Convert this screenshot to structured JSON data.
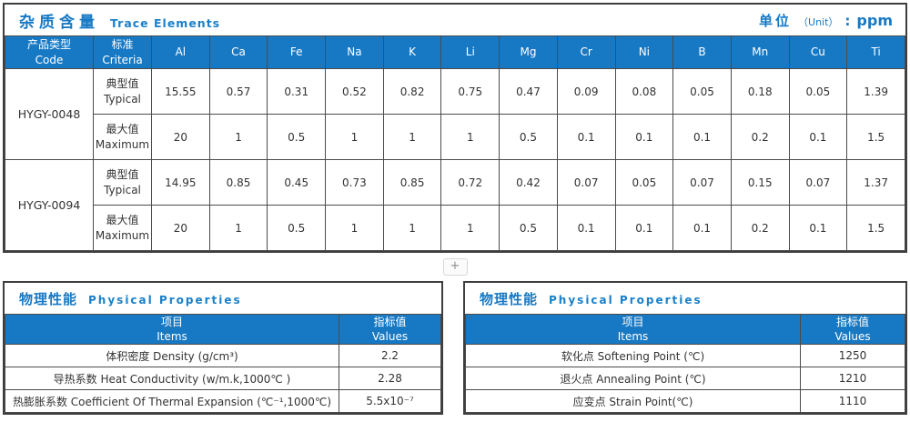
{
  "colors": {
    "accent_blue": "#1779c4",
    "header_bg": "#1779c4",
    "grid_line": "#4b4b4b",
    "text": "#333333"
  },
  "trace": {
    "title_zh": "杂质含量",
    "title_en": "Trace Elements",
    "unit_zh": "单位",
    "unit_paren": "（Unit）",
    "unit_colon": ":",
    "unit_value": "ppm",
    "col_code_zh": "产品类型",
    "col_code_en": "Code",
    "col_criteria_zh": "标准",
    "col_criteria_en": "Criteria",
    "elements": [
      "Al",
      "Ca",
      "Fe",
      "Na",
      "K",
      "Li",
      "Mg",
      "Cr",
      "Ni",
      "B",
      "Mn",
      "Cu",
      "Ti"
    ],
    "products": [
      {
        "code": "HYGY-0048",
        "rows": [
          {
            "label_zh": "典型值",
            "label_en": "Typical",
            "values": [
              "15.55",
              "0.57",
              "0.31",
              "0.52",
              "0.82",
              "0.75",
              "0.47",
              "0.09",
              "0.08",
              "0.05",
              "0.18",
              "0.05",
              "1.39"
            ]
          },
          {
            "label_zh": "最大值",
            "label_en": "Maximum",
            "values": [
              "20",
              "1",
              "0.5",
              "1",
              "1",
              "1",
              "0.5",
              "0.1",
              "0.1",
              "0.1",
              "0.2",
              "0.1",
              "1.5"
            ]
          }
        ]
      },
      {
        "code": "HYGY-0094",
        "rows": [
          {
            "label_zh": "典型值",
            "label_en": "Typical",
            "values": [
              "14.95",
              "0.85",
              "0.45",
              "0.73",
              "0.85",
              "0.72",
              "0.42",
              "0.07",
              "0.05",
              "0.07",
              "0.15",
              "0.07",
              "1.37"
            ]
          },
          {
            "label_zh": "最大值",
            "label_en": "Maximum",
            "values": [
              "20",
              "1",
              "0.5",
              "1",
              "1",
              "1",
              "0.5",
              "0.1",
              "0.1",
              "0.1",
              "0.2",
              "0.1",
              "1.5"
            ]
          }
        ]
      }
    ]
  },
  "divider": {
    "plus": "+"
  },
  "physical_left": {
    "title_zh": "物理性能",
    "title_en": "Physical Properties",
    "col_item_zh": "项目",
    "col_item_en": "Items",
    "col_value_zh": "指标值",
    "col_value_en": "Values",
    "rows": [
      {
        "item": "体积密度 Density (g/cm³)",
        "value": "2.2"
      },
      {
        "item": "导热系数 Heat Conductivity (w/m.k,1000℃ )",
        "value": "2.28"
      },
      {
        "item": "热膨胀系数 Coefficient Of Thermal Expansion (℃⁻¹,1000℃)",
        "value": "5.5x10⁻⁷"
      }
    ]
  },
  "physical_right": {
    "title_zh": "物理性能",
    "title_en": "Physical Properties",
    "col_item_zh": "项目",
    "col_item_en": "Items",
    "col_value_zh": "指标值",
    "col_value_en": "Values",
    "rows": [
      {
        "item": "软化点 Softening Point (℃)",
        "value": "1250"
      },
      {
        "item": "退火点 Annealing Point (℃)",
        "value": "1210"
      },
      {
        "item": "应变点 Strain Point(℃)",
        "value": "1110"
      }
    ]
  }
}
